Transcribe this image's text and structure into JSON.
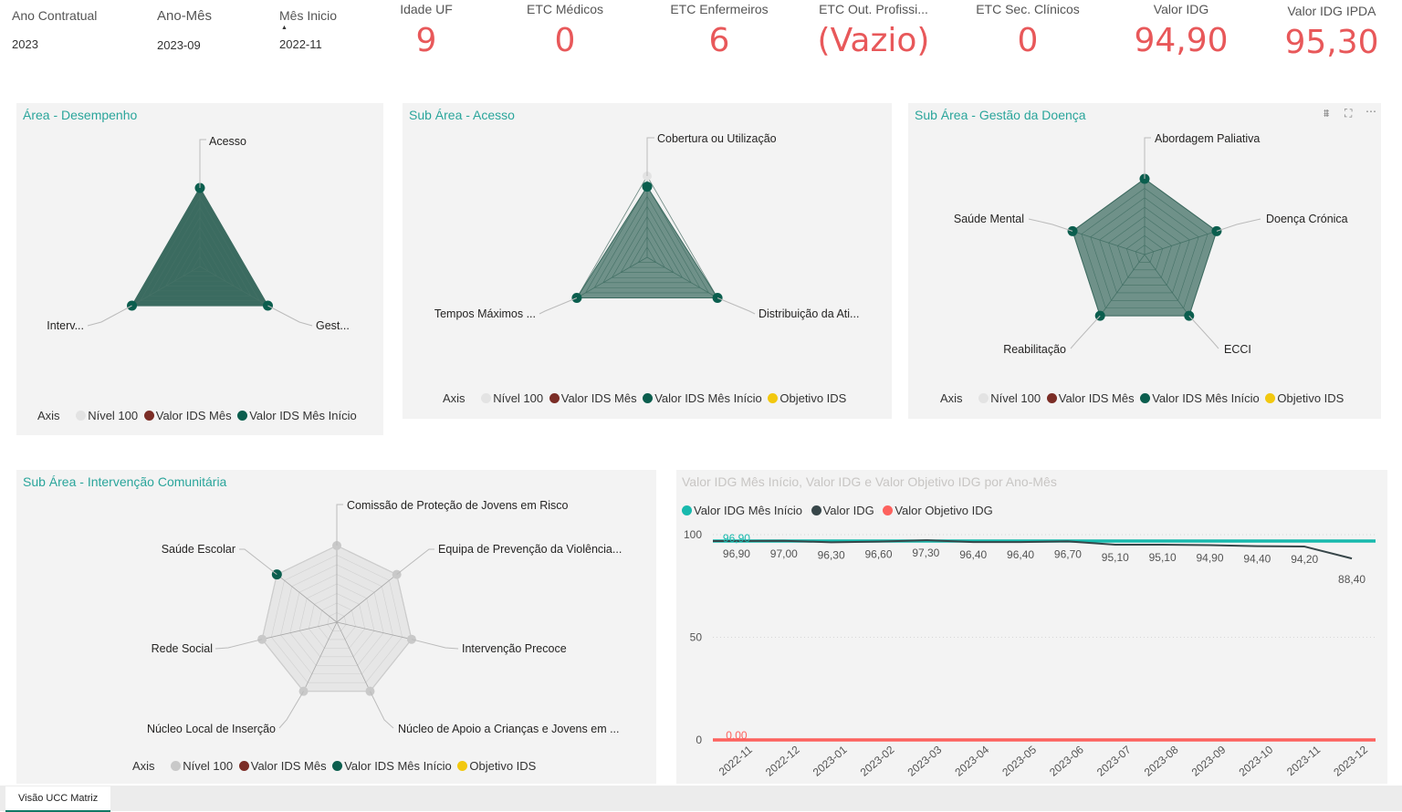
{
  "slicers": [
    {
      "label": "Ano Contratual",
      "value": "2023"
    },
    {
      "label": "Ano-Mês",
      "value": "2023-09"
    },
    {
      "label": "Mês Inicio",
      "value": "2022-11"
    }
  ],
  "kpis": [
    {
      "label": "Idade UF",
      "value": "9"
    },
    {
      "label": "ETC Médicos",
      "value": "0"
    },
    {
      "label": "ETC Enfermeiros",
      "value": "6"
    },
    {
      "label": "ETC Out. Profissi...",
      "value": "(Vazio)"
    },
    {
      "label": "ETC Sec. Clínicos",
      "value": "0"
    },
    {
      "label": "Valor IDG",
      "value": "94,90"
    },
    {
      "label": "Valor IDG IPDA",
      "value": "95,30"
    }
  ],
  "colors": {
    "teal": "#2aa59b",
    "kpi_red": "#e8585a",
    "dark_green": "#0b5e4e",
    "nivel": "#e3e3e3",
    "brown": "#7b2d26",
    "yellow": "#f2c80f",
    "polygon": "#3c6b60",
    "line_teal": "#17b9ad",
    "line_dark": "#374649",
    "line_red": "#fd625e"
  },
  "legend_radar": {
    "axis": "Axis",
    "items": [
      {
        "name": "Nível 100",
        "color": "#e3e3e3"
      },
      {
        "name": "Valor IDS Mês",
        "color": "#7b2d26"
      },
      {
        "name": "Valor IDS Mês Início",
        "color": "#0b5e4e"
      },
      {
        "name": "Objetivo IDS",
        "color": "#f2c80f"
      }
    ]
  },
  "radar1": {
    "title": "Área - Desempenho",
    "axes": [
      "Acesso",
      "Gest...",
      "Interv..."
    ],
    "values": [
      100,
      100,
      100
    ],
    "legend_items": [
      "Nível 100",
      "Valor IDS Mês",
      "Valor IDS Mês Início"
    ]
  },
  "radar2": {
    "title": "Sub Área - Acesso",
    "axes": [
      "Cobertura ou Utilização",
      "Distribuição da Ati...",
      "Tempos Máximos ..."
    ],
    "values": [
      87,
      100,
      100
    ]
  },
  "radar3": {
    "title": "Sub Área - Gestão da Doença",
    "axes": [
      "Abordagem Paliativa",
      "Doença Crónica",
      "ECCI",
      "Reabilitação",
      "Saúde Mental"
    ],
    "values": [
      100,
      100,
      100,
      100,
      100
    ]
  },
  "radar4": {
    "title": "Sub Área - Intervenção  Comunitária",
    "axes": [
      "Comissão de Proteção de Jovens em Risco",
      "Equipa de Prevenção da Violência...",
      "Intervenção Precoce",
      "Núcleo de Apoio a Crianças e Jovens em ...",
      "Núcleo Local de Inserção",
      "Rede Social",
      "Saúde Escolar"
    ],
    "values": [
      null,
      null,
      null,
      null,
      null,
      null,
      100
    ]
  },
  "line_chart": {
    "title": "Valor IDG Mês Início, Valor IDG e Valor Objetivo IDG por Ano-Mês",
    "legend": [
      {
        "name": "Valor IDG Mês Início",
        "color": "#17b9ad"
      },
      {
        "name": "Valor IDG",
        "color": "#374649"
      },
      {
        "name": "Valor Objetivo IDG",
        "color": "#fd625e"
      }
    ]
  },
  "chart_data": {
    "type": "line",
    "title": "Valor IDG Mês Início, Valor IDG e Valor Objetivo IDG por Ano-Mês",
    "x": [
      "2022-11",
      "2022-12",
      "2023-01",
      "2023-02",
      "2023-03",
      "2023-04",
      "2023-05",
      "2023-06",
      "2023-07",
      "2023-08",
      "2023-09",
      "2023-10",
      "2023-11",
      "2023-12"
    ],
    "yticks": [
      0,
      50,
      100
    ],
    "ylim": [
      0,
      100
    ],
    "series": [
      {
        "name": "Valor IDG Mês Início",
        "values": [
          96.9,
          96.9,
          96.9,
          96.9,
          96.9,
          96.9,
          96.9,
          96.9,
          96.9,
          96.9,
          96.9,
          96.9,
          96.9,
          96.9
        ],
        "labels": [
          "96,90",
          "",
          "",
          "",
          "",
          "",
          "",
          "",
          "",
          "",
          "",
          "",
          "",
          ""
        ]
      },
      {
        "name": "Valor IDG",
        "values": [
          96.9,
          97.0,
          96.3,
          96.6,
          97.3,
          96.4,
          96.4,
          96.7,
          95.1,
          95.1,
          94.9,
          94.4,
          94.2,
          88.4
        ],
        "labels": [
          "96,90",
          "97,00",
          "96,30",
          "96,60",
          "97,30",
          "96,40",
          "96,40",
          "96,70",
          "95,10",
          "95,10",
          "94,90",
          "94,40",
          "94,20",
          "88,40"
        ]
      },
      {
        "name": "Valor Objetivo IDG",
        "values": [
          0,
          0,
          0,
          0,
          0,
          0,
          0,
          0,
          0,
          0,
          0,
          0,
          0,
          0
        ],
        "labels": [
          "0,00",
          "",
          "",
          "",
          "",
          "",
          "",
          "",
          "",
          "",
          "",
          "",
          "",
          ""
        ]
      }
    ],
    "grid": true,
    "legend_position": "top-left"
  },
  "footer": {
    "tab": "Visão UCC Matriz"
  }
}
